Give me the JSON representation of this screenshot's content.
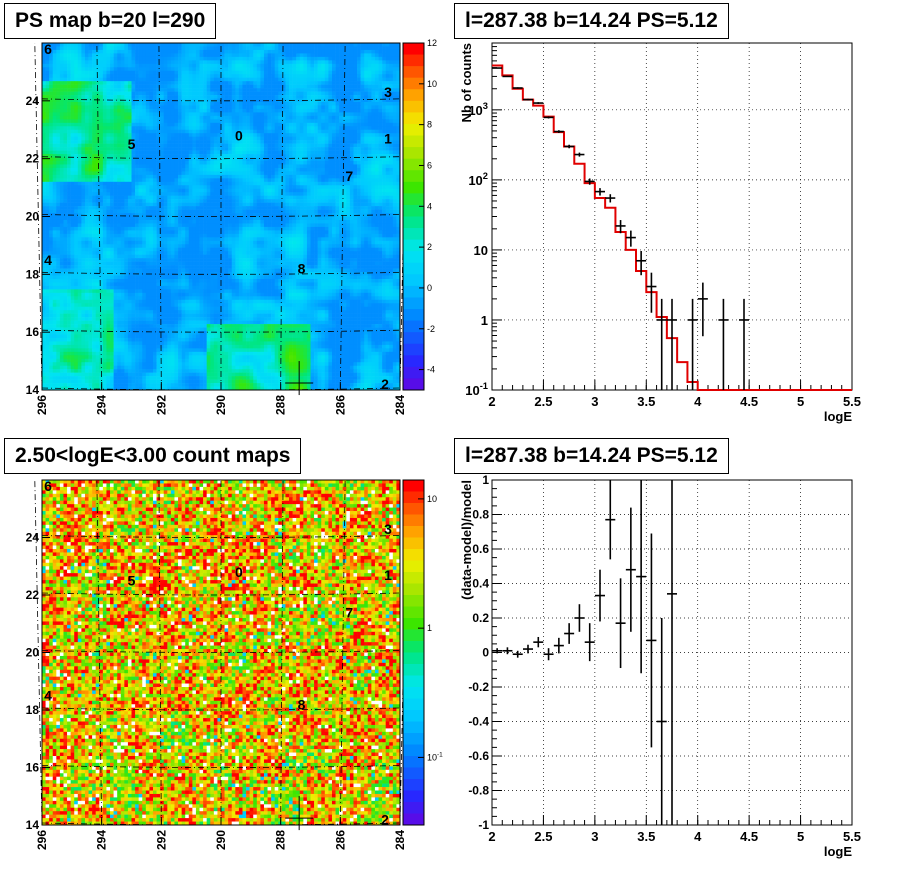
{
  "chart_data": [
    {
      "type": "heatmap",
      "title": "PS map b=20 l=290",
      "xlabel": "",
      "ylabel": "",
      "xlim": [
        296,
        284
      ],
      "ylim": [
        14,
        26
      ],
      "x_ticks": [
        "296",
        "294",
        "292",
        "290",
        "288",
        "286",
        "284"
      ],
      "y_ticks": [
        "14",
        "16",
        "18",
        "20",
        "22",
        "24"
      ],
      "colorbar": {
        "min": -5,
        "max": 12,
        "ticks": [
          "12",
          "10",
          "8",
          "6",
          "4",
          "2",
          "0",
          "-2",
          "-4"
        ]
      },
      "sources": [
        {
          "label": "0",
          "l": 289.4,
          "b": 22.8
        },
        {
          "label": "1",
          "l": 284.4,
          "b": 22.7
        },
        {
          "label": "2",
          "l": 284.5,
          "b": 14.2
        },
        {
          "label": "3",
          "l": 284.4,
          "b": 24.3
        },
        {
          "label": "4",
          "l": 295.8,
          "b": 18.5
        },
        {
          "label": "5",
          "l": 293.0,
          "b": 22.5
        },
        {
          "label": "6",
          "l": 295.8,
          "b": 25.8
        },
        {
          "label": "7",
          "l": 285.7,
          "b": 21.4
        },
        {
          "label": "8",
          "l": 287.3,
          "b": 18.2
        }
      ],
      "marker": {
        "l": 287.38,
        "b": 14.24
      }
    },
    {
      "type": "line",
      "title": "l=287.38 b=14.24 PS=5.12",
      "xlabel": "logE",
      "ylabel": "Nb of counts",
      "xlim": [
        2,
        5.5
      ],
      "ylim": [
        0.1,
        9000
      ],
      "y_scale": "log",
      "x_ticks": [
        "2",
        "2.5",
        "3",
        "3.5",
        "4",
        "4.5",
        "5",
        "5.5"
      ],
      "y_ticks": [
        {
          "value": 0.1,
          "label": "10",
          "sup": "-1"
        },
        {
          "value": 1,
          "label": "1",
          "sup": ""
        },
        {
          "value": 10,
          "label": "10",
          "sup": ""
        },
        {
          "value": 100,
          "label": "10",
          "sup": "2"
        },
        {
          "value": 1000,
          "label": "10",
          "sup": "3"
        }
      ],
      "grid": true,
      "data_points": [
        {
          "x": 2.05,
          "y": 3950
        },
        {
          "x": 2.15,
          "y": 3000
        },
        {
          "x": 2.25,
          "y": 2050
        },
        {
          "x": 2.35,
          "y": 1400
        },
        {
          "x": 2.45,
          "y": 1250
        },
        {
          "x": 2.55,
          "y": 780
        },
        {
          "x": 2.65,
          "y": 490
        },
        {
          "x": 2.75,
          "y": 300
        },
        {
          "x": 2.85,
          "y": 230
        },
        {
          "x": 2.95,
          "y": 95
        },
        {
          "x": 3.05,
          "y": 68
        },
        {
          "x": 3.15,
          "y": 55
        },
        {
          "x": 3.25,
          "y": 22
        },
        {
          "x": 3.35,
          "y": 15
        },
        {
          "x": 3.45,
          "y": 7
        },
        {
          "x": 3.55,
          "y": 3
        },
        {
          "x": 3.65,
          "y": 1
        },
        {
          "x": 3.75,
          "y": 1
        },
        {
          "x": 3.95,
          "y": 1
        },
        {
          "x": 4.05,
          "y": 2
        },
        {
          "x": 4.25,
          "y": 1
        },
        {
          "x": 4.45,
          "y": 1
        }
      ],
      "model_step": [
        {
          "x0": 2.0,
          "x1": 2.1,
          "y": 4300
        },
        {
          "x0": 2.1,
          "x1": 2.2,
          "y": 3100
        },
        {
          "x0": 2.2,
          "x1": 2.3,
          "y": 2000
        },
        {
          "x0": 2.3,
          "x1": 2.4,
          "y": 1400
        },
        {
          "x0": 2.4,
          "x1": 2.5,
          "y": 1150
        },
        {
          "x0": 2.5,
          "x1": 2.6,
          "y": 800
        },
        {
          "x0": 2.6,
          "x1": 2.7,
          "y": 480
        },
        {
          "x0": 2.7,
          "x1": 2.8,
          "y": 300
        },
        {
          "x0": 2.8,
          "x1": 2.9,
          "y": 170
        },
        {
          "x0": 2.9,
          "x1": 3.0,
          "y": 90
        },
        {
          "x0": 3.0,
          "x1": 3.1,
          "y": 55
        },
        {
          "x0": 3.1,
          "x1": 3.2,
          "y": 40
        },
        {
          "x0": 3.2,
          "x1": 3.3,
          "y": 18
        },
        {
          "x0": 3.3,
          "x1": 3.4,
          "y": 10
        },
        {
          "x0": 3.4,
          "x1": 3.5,
          "y": 5
        },
        {
          "x0": 3.5,
          "x1": 3.6,
          "y": 2.5
        },
        {
          "x0": 3.6,
          "x1": 3.7,
          "y": 1.1
        },
        {
          "x0": 3.7,
          "x1": 3.8,
          "y": 0.55
        },
        {
          "x0": 3.8,
          "x1": 3.9,
          "y": 0.25
        },
        {
          "x0": 3.9,
          "x1": 4.0,
          "y": 0.13
        },
        {
          "x0": 4.0,
          "x1": 5.5,
          "y": 0.1
        }
      ]
    },
    {
      "type": "heatmap",
      "title": "2.50<logE<3.00 count maps",
      "xlabel": "",
      "ylabel": "",
      "xlim": [
        296,
        284
      ],
      "ylim": [
        14,
        26
      ],
      "x_ticks": [
        "296",
        "294",
        "292",
        "290",
        "288",
        "286",
        "284"
      ],
      "y_ticks": [
        "14",
        "16",
        "18",
        "20",
        "22",
        "24"
      ],
      "colorbar": {
        "scale": "log",
        "ticks": [
          {
            "value": 10,
            "label": "10",
            "sup": ""
          },
          {
            "value": 1,
            "label": "1",
            "sup": ""
          },
          {
            "value": 0.1,
            "label": "10",
            "sup": "-1"
          }
        ]
      },
      "sources": [
        {
          "label": "0",
          "l": 289.4,
          "b": 22.8
        },
        {
          "label": "1",
          "l": 284.4,
          "b": 22.7
        },
        {
          "label": "2",
          "l": 284.5,
          "b": 14.2
        },
        {
          "label": "3",
          "l": 284.4,
          "b": 24.3
        },
        {
          "label": "4",
          "l": 295.8,
          "b": 18.5
        },
        {
          "label": "5",
          "l": 293.0,
          "b": 22.5
        },
        {
          "label": "6",
          "l": 295.8,
          "b": 25.8
        },
        {
          "label": "7",
          "l": 285.7,
          "b": 21.4
        },
        {
          "label": "8",
          "l": 287.3,
          "b": 18.2
        }
      ],
      "marker": {
        "l": 287.38,
        "b": 14.24
      }
    },
    {
      "type": "scatter",
      "title": "l=287.38 b=14.24 PS=5.12",
      "xlabel": "logE",
      "ylabel": "(data-model)/model",
      "xlim": [
        2,
        5.5
      ],
      "ylim": [
        -1,
        1
      ],
      "x_ticks": [
        "2",
        "2.5",
        "3",
        "3.5",
        "4",
        "4.5",
        "5",
        "5.5"
      ],
      "y_ticks": [
        "-1",
        "-0.8",
        "-0.6",
        "-0.4",
        "-0.2",
        "0",
        "0.2",
        "0.4",
        "0.6",
        "0.8",
        "1"
      ],
      "grid": true,
      "points": [
        {
          "x": 2.05,
          "y": 0.01,
          "err": 0.015
        },
        {
          "x": 2.15,
          "y": 0.01,
          "err": 0.02
        },
        {
          "x": 2.25,
          "y": -0.01,
          "err": 0.02
        },
        {
          "x": 2.35,
          "y": 0.02,
          "err": 0.025
        },
        {
          "x": 2.45,
          "y": 0.06,
          "err": 0.03
        },
        {
          "x": 2.55,
          "y": -0.01,
          "err": 0.035
        },
        {
          "x": 2.65,
          "y": 0.04,
          "err": 0.045
        },
        {
          "x": 2.75,
          "y": 0.11,
          "err": 0.06
        },
        {
          "x": 2.85,
          "y": 0.2,
          "err": 0.08
        },
        {
          "x": 2.95,
          "y": 0.06,
          "err": 0.11
        },
        {
          "x": 3.05,
          "y": 0.33,
          "err": 0.15
        },
        {
          "x": 3.15,
          "y": 0.77,
          "err": 0.23
        },
        {
          "x": 3.25,
          "y": 0.17,
          "err": 0.26
        },
        {
          "x": 3.35,
          "y": 0.48,
          "err": 0.36
        },
        {
          "x": 3.45,
          "y": 0.44,
          "err": 0.56
        },
        {
          "x": 3.55,
          "y": 0.07,
          "err": 0.62
        },
        {
          "x": 3.65,
          "y": -0.4,
          "err": 0.6
        },
        {
          "x": 3.75,
          "y": 0.34,
          "err": 1.34
        }
      ]
    }
  ]
}
